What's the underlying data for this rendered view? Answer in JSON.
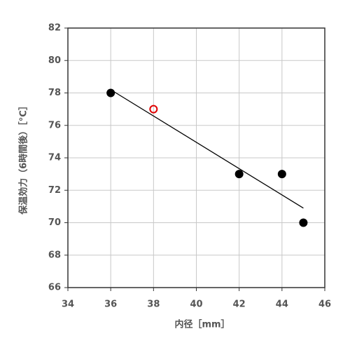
{
  "chart_data": {
    "type": "scatter",
    "x_label": "内径［mm］",
    "y_label": "保温効力（6時間後）［°C］",
    "series": [
      {
        "color": "#000000",
        "fill": "#000000",
        "x": [
          36,
          42,
          44,
          45
        ],
        "values": [
          78,
          73,
          73,
          70
        ]
      },
      {
        "color": "#e00000",
        "fill": "none",
        "x": [
          38
        ],
        "values": [
          77
        ]
      }
    ],
    "trendline": {
      "color": "#000000",
      "x": [
        36,
        45
      ],
      "values": [
        78.2,
        70.9
      ]
    },
    "xlim": [
      34,
      46
    ],
    "xticks": [
      34,
      36,
      38,
      40,
      42,
      44,
      46
    ],
    "ylim": [
      66,
      82
    ],
    "yticks": [
      66,
      68,
      70,
      72,
      74,
      76,
      78,
      80,
      82
    ],
    "grid": true
  }
}
